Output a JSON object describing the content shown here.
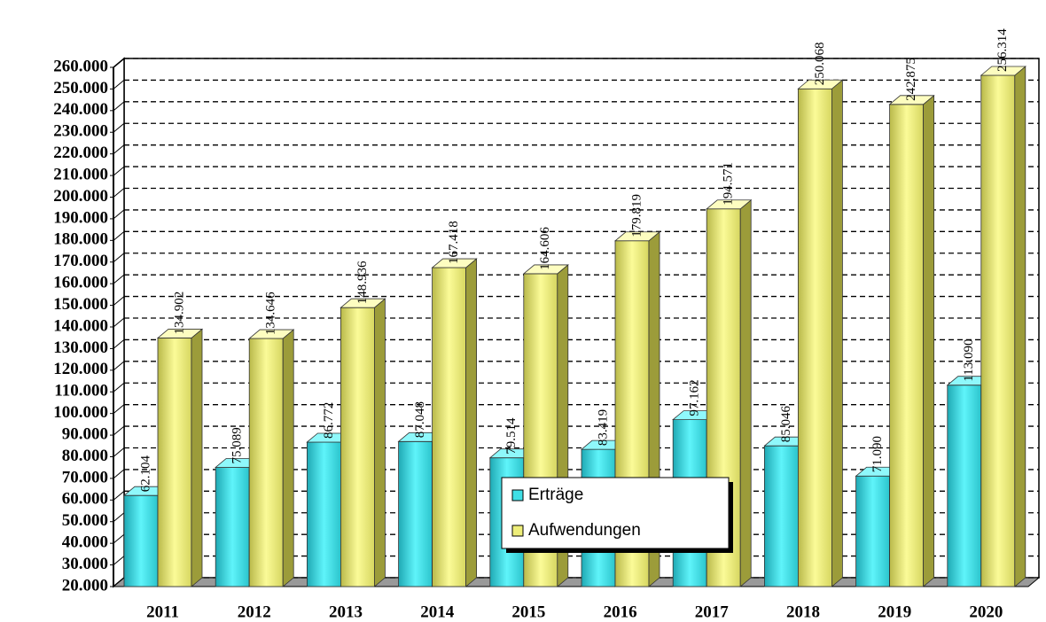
{
  "chart_data": {
    "type": "bar3d",
    "categories": [
      "2011",
      "2012",
      "2013",
      "2014",
      "2015",
      "2016",
      "2017",
      "2018",
      "2019",
      "2020"
    ],
    "series": [
      {
        "name": "Erträge",
        "color": "#3fdfe6",
        "values": [
          62104,
          75089,
          86772,
          87048,
          79514,
          83419,
          97162,
          85046,
          71090,
          113090
        ],
        "value_labels": [
          "62.104",
          "75.089",
          "86.772",
          "87.048",
          "79.514",
          "83.419",
          "97.162",
          "85.046",
          "71.090",
          "113.090"
        ]
      },
      {
        "name": "Aufwendungen",
        "color": "#eeee7a",
        "values": [
          134902,
          134646,
          148936,
          167418,
          164606,
          179819,
          194571,
          250068,
          242875,
          256314
        ],
        "value_labels": [
          "134.902",
          "134.646",
          "148.936",
          "167.418",
          "164.606",
          "179.819",
          "194.571",
          "250.068",
          "242.875",
          "256.314"
        ]
      }
    ],
    "ylim": [
      20000,
      260000
    ],
    "yticks": [
      {
        "value": 20000,
        "label": "20.000"
      },
      {
        "value": 30000,
        "label": "30.000"
      },
      {
        "value": 40000,
        "label": "40.000"
      },
      {
        "value": 50000,
        "label": "50.000"
      },
      {
        "value": 60000,
        "label": "60.000"
      },
      {
        "value": 70000,
        "label": "70.000"
      },
      {
        "value": 80000,
        "label": "80.000"
      },
      {
        "value": 90000,
        "label": "90.000"
      },
      {
        "value": 100000,
        "label": "100.000"
      },
      {
        "value": 110000,
        "label": "110.000"
      },
      {
        "value": 120000,
        "label": "120.000"
      },
      {
        "value": 130000,
        "label": "130.000"
      },
      {
        "value": 140000,
        "label": "140.000"
      },
      {
        "value": 150000,
        "label": "150.000"
      },
      {
        "value": 160000,
        "label": "160.000"
      },
      {
        "value": 170000,
        "label": "170.000"
      },
      {
        "value": 180000,
        "label": "180.000"
      },
      {
        "value": 190000,
        "label": "190.000"
      },
      {
        "value": 200000,
        "label": "200.000"
      },
      {
        "value": 210000,
        "label": "210.000"
      },
      {
        "value": 220000,
        "label": "220.000"
      },
      {
        "value": 230000,
        "label": "230.000"
      },
      {
        "value": 240000,
        "label": "240.000"
      },
      {
        "value": 250000,
        "label": "250.000"
      },
      {
        "value": 260000,
        "label": "260.000"
      }
    ],
    "grid": true,
    "legend": "center"
  }
}
